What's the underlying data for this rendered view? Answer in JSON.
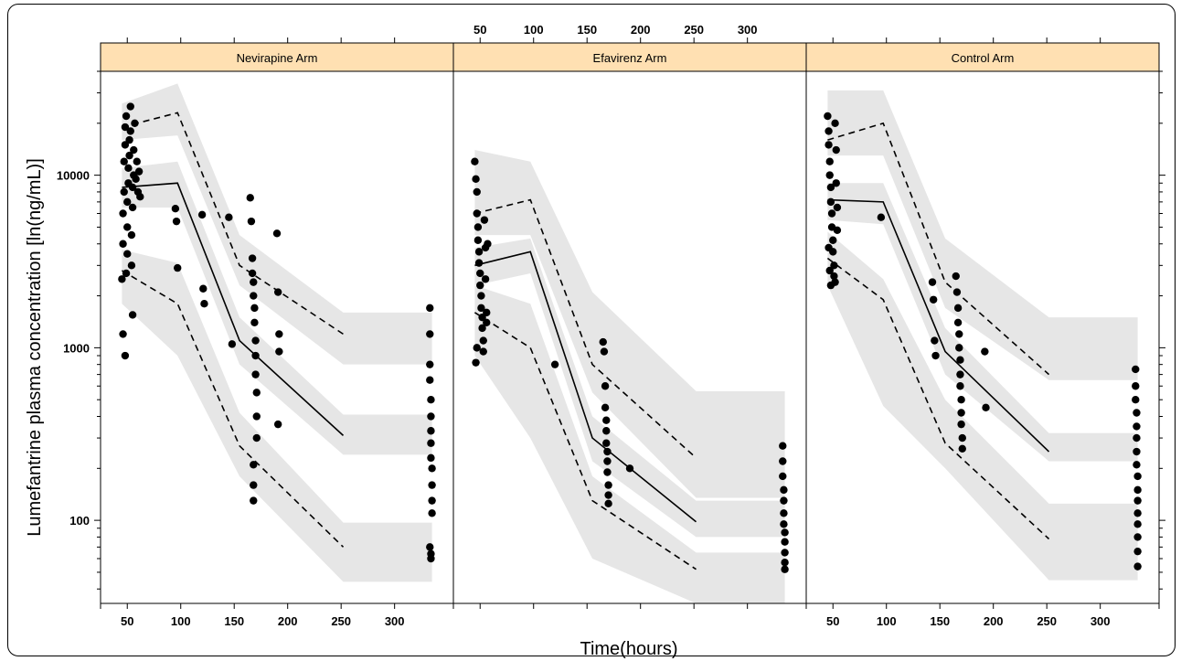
{
  "chart_data": {
    "type": "scatter",
    "y_axis_label": "Lumefantrine plasma concentration [ln(ng/mL)]",
    "x_axis_label": "Time(hours)",
    "y_scale": "log",
    "ylim": [
      33,
      40000
    ],
    "xlim": [
      25,
      355
    ],
    "x_ticks": [
      50,
      100,
      150,
      200,
      250,
      300
    ],
    "y_ticks": [
      100,
      1000,
      10000
    ],
    "colors": {
      "strip": "#ffe0b2",
      "band": "#e6e6e6",
      "points": "#000000",
      "lines": "#000000"
    },
    "panels": [
      {
        "name": "Nevirapine Arm",
        "x_tick_position": "bottom",
        "median": {
          "x": [
            45,
            97,
            155,
            252
          ],
          "y": [
            8500,
            9000,
            1100,
            310
          ]
        },
        "p5": {
          "x": [
            45,
            97,
            155,
            252
          ],
          "y": [
            2800,
            1800,
            270,
            70
          ]
        },
        "p95": {
          "x": [
            45,
            97,
            155,
            252
          ],
          "y": [
            19000,
            23000,
            3000,
            1200
          ]
        },
        "band_p95": {
          "x": [
            45,
            97,
            155,
            252,
            335
          ],
          "lo": [
            16000,
            17000,
            2300,
            800,
            800
          ],
          "hi": [
            26000,
            34000,
            4500,
            1600,
            1600
          ]
        },
        "band_median": {
          "x": [
            45,
            97,
            155,
            252,
            335
          ],
          "lo": [
            6500,
            6500,
            800,
            240,
            240
          ],
          "hi": [
            11000,
            12000,
            1500,
            410,
            410
          ]
        },
        "band_p5": {
          "x": [
            45,
            97,
            155,
            252,
            335
          ],
          "lo": [
            1800,
            900,
            180,
            44,
            44
          ],
          "hi": [
            3700,
            3100,
            420,
            97,
            97
          ]
        },
        "points": [
          [
            45,
            2500
          ],
          [
            46,
            4000
          ],
          [
            46,
            6000
          ],
          [
            47,
            8000
          ],
          [
            47,
            12000
          ],
          [
            48,
            15000
          ],
          [
            48,
            19000
          ],
          [
            49,
            22000
          ],
          [
            49,
            2700
          ],
          [
            50,
            3500
          ],
          [
            50,
            5000
          ],
          [
            50,
            7000
          ],
          [
            51,
            9000
          ],
          [
            51,
            11000
          ],
          [
            52,
            13000
          ],
          [
            52,
            16000
          ],
          [
            53,
            18000
          ],
          [
            53,
            25000
          ],
          [
            54,
            3000
          ],
          [
            54,
            4500
          ],
          [
            55,
            6500
          ],
          [
            55,
            8500
          ],
          [
            56,
            10000
          ],
          [
            56,
            14000
          ],
          [
            57,
            20000
          ],
          [
            58,
            9500
          ],
          [
            59,
            12000
          ],
          [
            60,
            8000
          ],
          [
            61,
            10500
          ],
          [
            62,
            7500
          ],
          [
            46,
            1200
          ],
          [
            48,
            900
          ],
          [
            55,
            1550
          ],
          [
            95,
            6400
          ],
          [
            96,
            5400
          ],
          [
            97,
            2900
          ],
          [
            120,
            5900
          ],
          [
            121,
            2200
          ],
          [
            122,
            1800
          ],
          [
            145,
            5700
          ],
          [
            148,
            1050
          ],
          [
            165,
            7400
          ],
          [
            166,
            5400
          ],
          [
            167,
            3300
          ],
          [
            167,
            2700
          ],
          [
            168,
            2400
          ],
          [
            168,
            2000
          ],
          [
            169,
            1700
          ],
          [
            169,
            1400
          ],
          [
            170,
            1100
          ],
          [
            170,
            900
          ],
          [
            170,
            700
          ],
          [
            171,
            550
          ],
          [
            171,
            400
          ],
          [
            171,
            300
          ],
          [
            168,
            210
          ],
          [
            168,
            160
          ],
          [
            168,
            130
          ],
          [
            190,
            4600
          ],
          [
            191,
            2100
          ],
          [
            192,
            1200
          ],
          [
            192,
            950
          ],
          [
            191,
            360
          ],
          [
            333,
            1700
          ],
          [
            333,
            1200
          ],
          [
            333,
            800
          ],
          [
            333,
            650
          ],
          [
            334,
            500
          ],
          [
            334,
            400
          ],
          [
            334,
            330
          ],
          [
            334,
            280
          ],
          [
            334,
            230
          ],
          [
            335,
            200
          ],
          [
            335,
            160
          ],
          [
            335,
            130
          ],
          [
            335,
            110
          ],
          [
            333,
            70
          ],
          [
            334,
            64
          ],
          [
            334,
            60
          ]
        ]
      },
      {
        "name": "Efavirenz Arm",
        "x_tick_position": "top",
        "median": {
          "x": [
            45,
            97,
            155,
            252
          ],
          "y": [
            3000,
            3600,
            300,
            98
          ]
        },
        "p5": {
          "x": [
            45,
            97,
            155,
            252
          ],
          "y": [
            1600,
            1000,
            130,
            52
          ]
        },
        "p95": {
          "x": [
            45,
            97,
            155,
            252
          ],
          "y": [
            6000,
            7200,
            800,
            230
          ]
        },
        "band_p95": {
          "x": [
            45,
            97,
            155,
            252,
            335
          ],
          "lo": [
            4500,
            4500,
            550,
            135,
            135
          ],
          "hi": [
            14000,
            12000,
            2100,
            560,
            560
          ]
        },
        "band_median": {
          "x": [
            45,
            97,
            155,
            252,
            335
          ],
          "lo": [
            2300,
            2700,
            220,
            80,
            80
          ],
          "hi": [
            3800,
            4300,
            400,
            130,
            130
          ]
        },
        "band_p5": {
          "x": [
            45,
            97,
            155,
            252,
            335
          ],
          "lo": [
            900,
            300,
            60,
            33,
            33
          ],
          "hi": [
            2300,
            1800,
            180,
            65,
            65
          ]
        },
        "points": [
          [
            45,
            12000
          ],
          [
            46,
            9500
          ],
          [
            47,
            8000
          ],
          [
            47,
            6000
          ],
          [
            48,
            5000
          ],
          [
            48,
            4200
          ],
          [
            49,
            3600
          ],
          [
            49,
            3100
          ],
          [
            50,
            2700
          ],
          [
            50,
            2300
          ],
          [
            51,
            2000
          ],
          [
            51,
            1700
          ],
          [
            52,
            1500
          ],
          [
            52,
            1300
          ],
          [
            53,
            1100
          ],
          [
            53,
            950
          ],
          [
            54,
            5500
          ],
          [
            55,
            3800
          ],
          [
            55,
            2500
          ],
          [
            56,
            1600
          ],
          [
            56,
            1400
          ],
          [
            57,
            4000
          ],
          [
            46,
            820
          ],
          [
            47,
            1000
          ],
          [
            120,
            800
          ],
          [
            165,
            1080
          ],
          [
            166,
            950
          ],
          [
            167,
            600
          ],
          [
            167,
            450
          ],
          [
            168,
            380
          ],
          [
            168,
            330
          ],
          [
            168,
            280
          ],
          [
            169,
            250
          ],
          [
            169,
            220
          ],
          [
            169,
            190
          ],
          [
            170,
            160
          ],
          [
            170,
            140
          ],
          [
            170,
            125
          ],
          [
            190,
            200
          ],
          [
            333,
            270
          ],
          [
            333,
            220
          ],
          [
            333,
            180
          ],
          [
            334,
            150
          ],
          [
            334,
            130
          ],
          [
            334,
            110
          ],
          [
            334,
            95
          ],
          [
            335,
            85
          ],
          [
            335,
            75
          ],
          [
            335,
            65
          ],
          [
            335,
            57
          ],
          [
            335,
            52
          ]
        ]
      },
      {
        "name": "Control Arm",
        "x_tick_position": "bottom",
        "median": {
          "x": [
            45,
            97,
            155,
            252
          ],
          "y": [
            7200,
            7000,
            950,
            250
          ]
        },
        "p5": {
          "x": [
            45,
            97,
            155,
            252
          ],
          "y": [
            3300,
            1900,
            280,
            78
          ]
        },
        "p95": {
          "x": [
            45,
            97,
            155,
            252
          ],
          "y": [
            16000,
            20000,
            2400,
            700
          ]
        },
        "band_p95": {
          "x": [
            45,
            97,
            155,
            252,
            335
          ],
          "lo": [
            13000,
            13000,
            1700,
            650,
            650
          ],
          "hi": [
            31000,
            31000,
            4300,
            1500,
            1500
          ]
        },
        "band_median": {
          "x": [
            45,
            97,
            155,
            252,
            335
          ],
          "lo": [
            5500,
            5200,
            700,
            220,
            220
          ],
          "hi": [
            9000,
            9000,
            1300,
            320,
            320
          ]
        },
        "band_p5": {
          "x": [
            45,
            97,
            155,
            252,
            335
          ],
          "lo": [
            2300,
            460,
            200,
            45,
            45
          ],
          "hi": [
            4700,
            2500,
            500,
            125,
            125
          ]
        },
        "points": [
          [
            45,
            22000
          ],
          [
            46,
            18000
          ],
          [
            46,
            15000
          ],
          [
            47,
            12000
          ],
          [
            47,
            10000
          ],
          [
            48,
            8500
          ],
          [
            48,
            7000
          ],
          [
            49,
            6000
          ],
          [
            49,
            5000
          ],
          [
            50,
            4200
          ],
          [
            50,
            3600
          ],
          [
            51,
            3000
          ],
          [
            51,
            2600
          ],
          [
            52,
            2400
          ],
          [
            52,
            20000
          ],
          [
            53,
            14000
          ],
          [
            53,
            9000
          ],
          [
            54,
            6500
          ],
          [
            54,
            4800
          ],
          [
            46,
            3800
          ],
          [
            47,
            2800
          ],
          [
            48,
            2300
          ],
          [
            95,
            5700
          ],
          [
            143,
            2400
          ],
          [
            144,
            1900
          ],
          [
            145,
            1100
          ],
          [
            146,
            900
          ],
          [
            165,
            2600
          ],
          [
            166,
            2100
          ],
          [
            167,
            1700
          ],
          [
            167,
            1400
          ],
          [
            168,
            1200
          ],
          [
            168,
            1000
          ],
          [
            169,
            850
          ],
          [
            169,
            700
          ],
          [
            169,
            600
          ],
          [
            170,
            500
          ],
          [
            170,
            420
          ],
          [
            170,
            360
          ],
          [
            171,
            300
          ],
          [
            171,
            260
          ],
          [
            192,
            950
          ],
          [
            193,
            450
          ],
          [
            333,
            750
          ],
          [
            333,
            600
          ],
          [
            333,
            500
          ],
          [
            334,
            420
          ],
          [
            334,
            350
          ],
          [
            334,
            300
          ],
          [
            334,
            250
          ],
          [
            334,
            210
          ],
          [
            335,
            180
          ],
          [
            335,
            150
          ],
          [
            335,
            130
          ],
          [
            335,
            110
          ],
          [
            335,
            95
          ],
          [
            335,
            80
          ],
          [
            335,
            66
          ],
          [
            335,
            54
          ]
        ]
      }
    ]
  }
}
